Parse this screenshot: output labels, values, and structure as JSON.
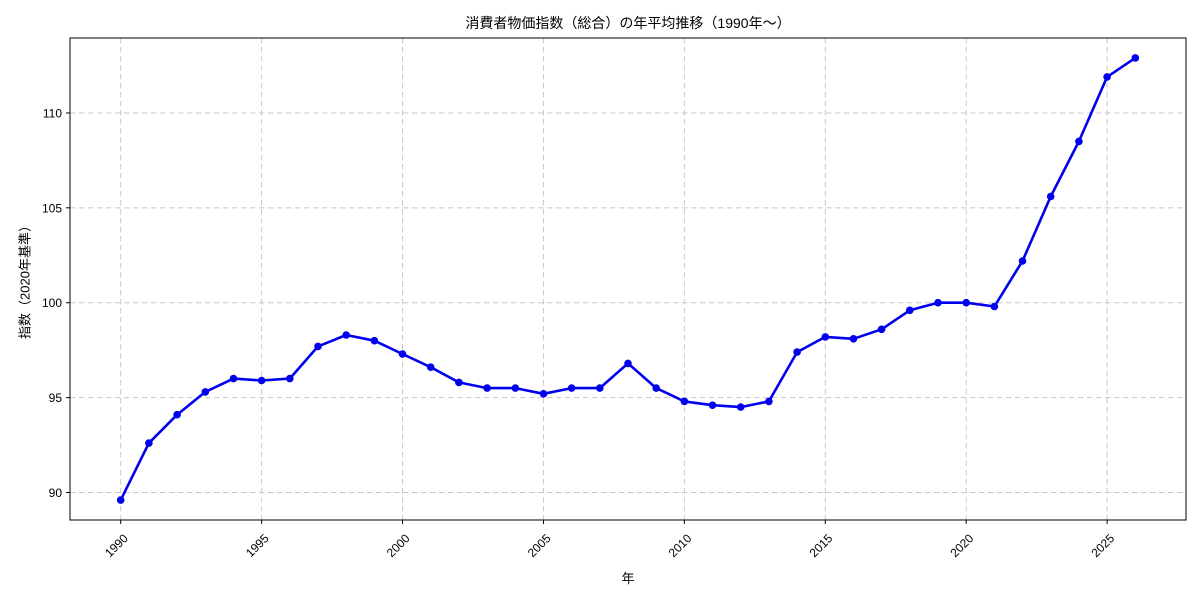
{
  "chart_data": {
    "type": "line",
    "title": "消費者物価指数（総合）の年平均推移（1990年〜）",
    "xlabel": "年",
    "ylabel": "指数（2020年基準）",
    "x": [
      1990,
      1991,
      1992,
      1993,
      1994,
      1995,
      1996,
      1997,
      1998,
      1999,
      2000,
      2001,
      2002,
      2003,
      2004,
      2005,
      2006,
      2007,
      2008,
      2009,
      2010,
      2011,
      2012,
      2013,
      2014,
      2015,
      2016,
      2017,
      2018,
      2019,
      2020,
      2021,
      2022,
      2023,
      2024,
      2025,
      2026
    ],
    "series": [
      {
        "name": "消費者物価指数（総合）",
        "values": [
          89.6,
          92.6,
          94.1,
          95.3,
          96.0,
          95.9,
          96.0,
          97.7,
          98.3,
          98.0,
          97.3,
          96.6,
          95.8,
          95.5,
          95.5,
          95.2,
          95.5,
          95.5,
          96.8,
          95.5,
          94.8,
          94.6,
          94.5,
          94.8,
          97.4,
          98.2,
          98.1,
          98.6,
          99.6,
          100.0,
          100.0,
          99.8,
          102.2,
          105.6,
          108.5,
          111.9,
          112.9
        ]
      }
    ],
    "x_ticks": [
      1990,
      1995,
      2000,
      2005,
      2010,
      2015,
      2020,
      2025
    ],
    "y_ticks": [
      90,
      95,
      100,
      105,
      110
    ],
    "xlim": [
      1988.2,
      2027.8
    ],
    "ylim": [
      88.55,
      113.95
    ],
    "grid": true,
    "grid_style": "dashed",
    "legend_position": "none",
    "colors": {
      "line": "#0000ee",
      "marker": "#0000ee",
      "grid": "#c8c8c8",
      "spine": "#000000",
      "text": "#000000"
    }
  }
}
